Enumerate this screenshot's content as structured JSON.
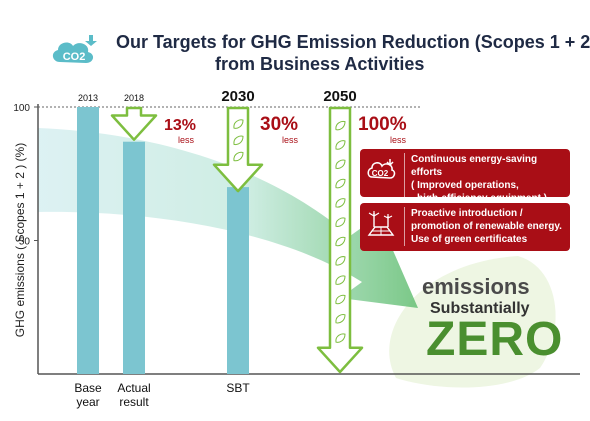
{
  "header": {
    "title_line1": "Our Targets for GHG Emission Reduction (Scopes 1 + 2)",
    "title_line2": "from Business Activities",
    "badge_text": "CO2"
  },
  "chart_data": {
    "type": "bar",
    "ylabel": "GHG emissions ( Scopes 1 + 2 ) (%)",
    "ylim": [
      0,
      100
    ],
    "yticks": [
      "100",
      "50"
    ],
    "grid": false,
    "bars": [
      {
        "category_line1": "Base",
        "category_line2": "year",
        "year_label": "2013",
        "value": 100
      },
      {
        "category_line1": "Actual",
        "category_line2": "result",
        "year_label": "2018",
        "value": 87,
        "reduction_pct": "13%",
        "reduction_suffix": "less"
      },
      {
        "category_line1": "SBT",
        "category_line2": "",
        "year_label": "2030",
        "value": 70,
        "reduction_pct": "30%",
        "reduction_suffix": "less"
      },
      {
        "category_line1": "",
        "category_line2": "",
        "year_label": "2050",
        "value": 0,
        "reduction_pct": "100%",
        "reduction_suffix": "less"
      }
    ]
  },
  "measures": [
    {
      "lines": [
        "Continuous energy-saving efforts",
        "( Improved operations,",
        "high-efficiency equipment )"
      ],
      "icon": "co2-icon"
    },
    {
      "lines": [
        "Proactive introduction /",
        "promotion of renewable energy.",
        "Use of green certificates"
      ],
      "icon": "renewable-energy-icon"
    }
  ],
  "goal": {
    "line1": "emissions",
    "line2": "Substantially",
    "line3": "ZERO"
  },
  "colors": {
    "bar": "#7cc5d0",
    "arrow": "#7dbe3f",
    "reduction_text": "#a90e16",
    "box": "#a90e16",
    "zero": "#4a8f2f"
  }
}
